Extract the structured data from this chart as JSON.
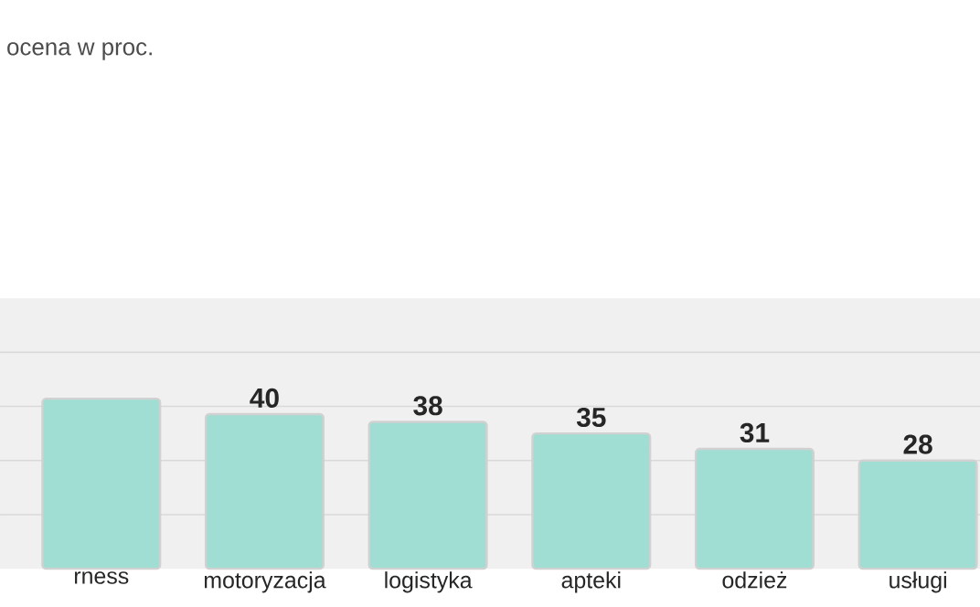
{
  "chart_data": {
    "type": "bar",
    "title": "ocena w proc.",
    "categories": [
      "rness",
      "motoryzacja",
      "logistyka",
      "apteki",
      "odzież",
      "usługi"
    ],
    "values": [
      44,
      40,
      38,
      35,
      31,
      28
    ],
    "value_labels": [
      null,
      "40",
      "38",
      "35",
      "31",
      "28"
    ],
    "color": "#a0ddd3",
    "ylim": [
      0,
      70
    ],
    "yticks": [
      {
        "value": 14,
        "label": null
      },
      {
        "value": 28,
        "label": null
      },
      {
        "value": 42,
        "label": null
      },
      {
        "value": 56,
        "label": null
      }
    ],
    "grid": "y",
    "tick_labels": "x"
  }
}
